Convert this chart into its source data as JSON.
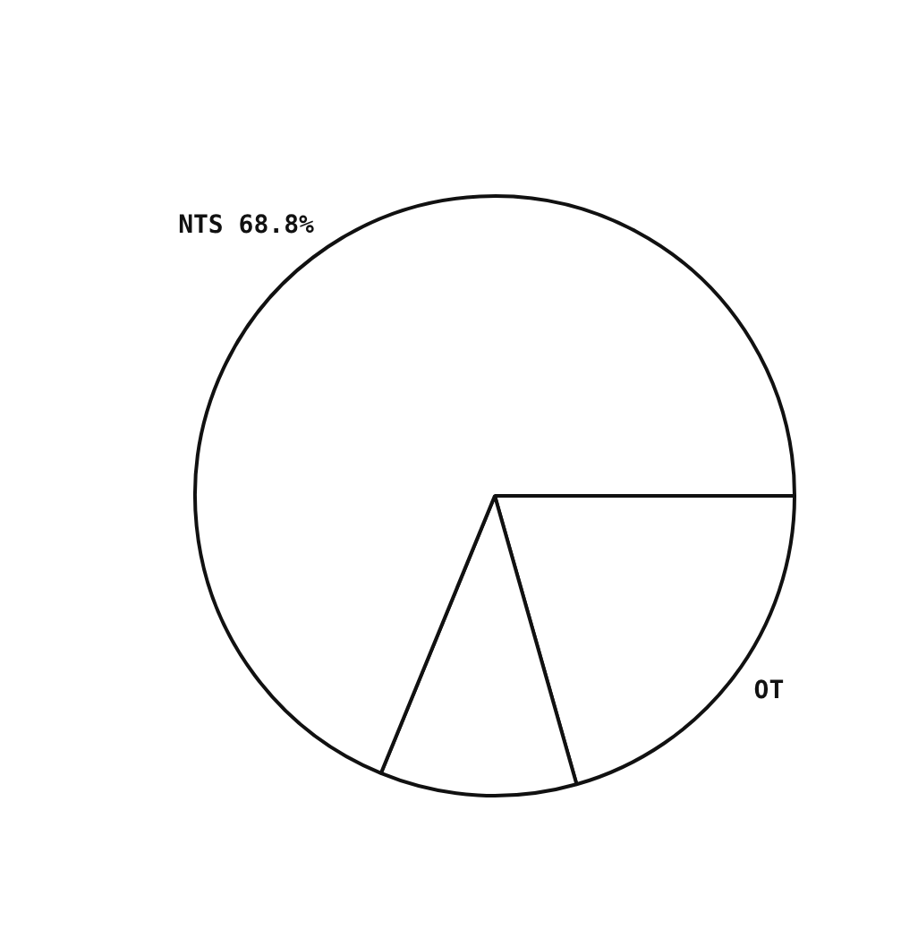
{
  "chart_data": {
    "type": "pie",
    "categories": [
      "OT",
      null,
      "NTS"
    ],
    "values": [
      20.6,
      10.6,
      68.8
    ],
    "colors": [
      "#ffffff",
      "#ffffff",
      "#ffffff"
    ],
    "value_labels": [
      null,
      null,
      "68.8%"
    ],
    "legend": false
  }
}
